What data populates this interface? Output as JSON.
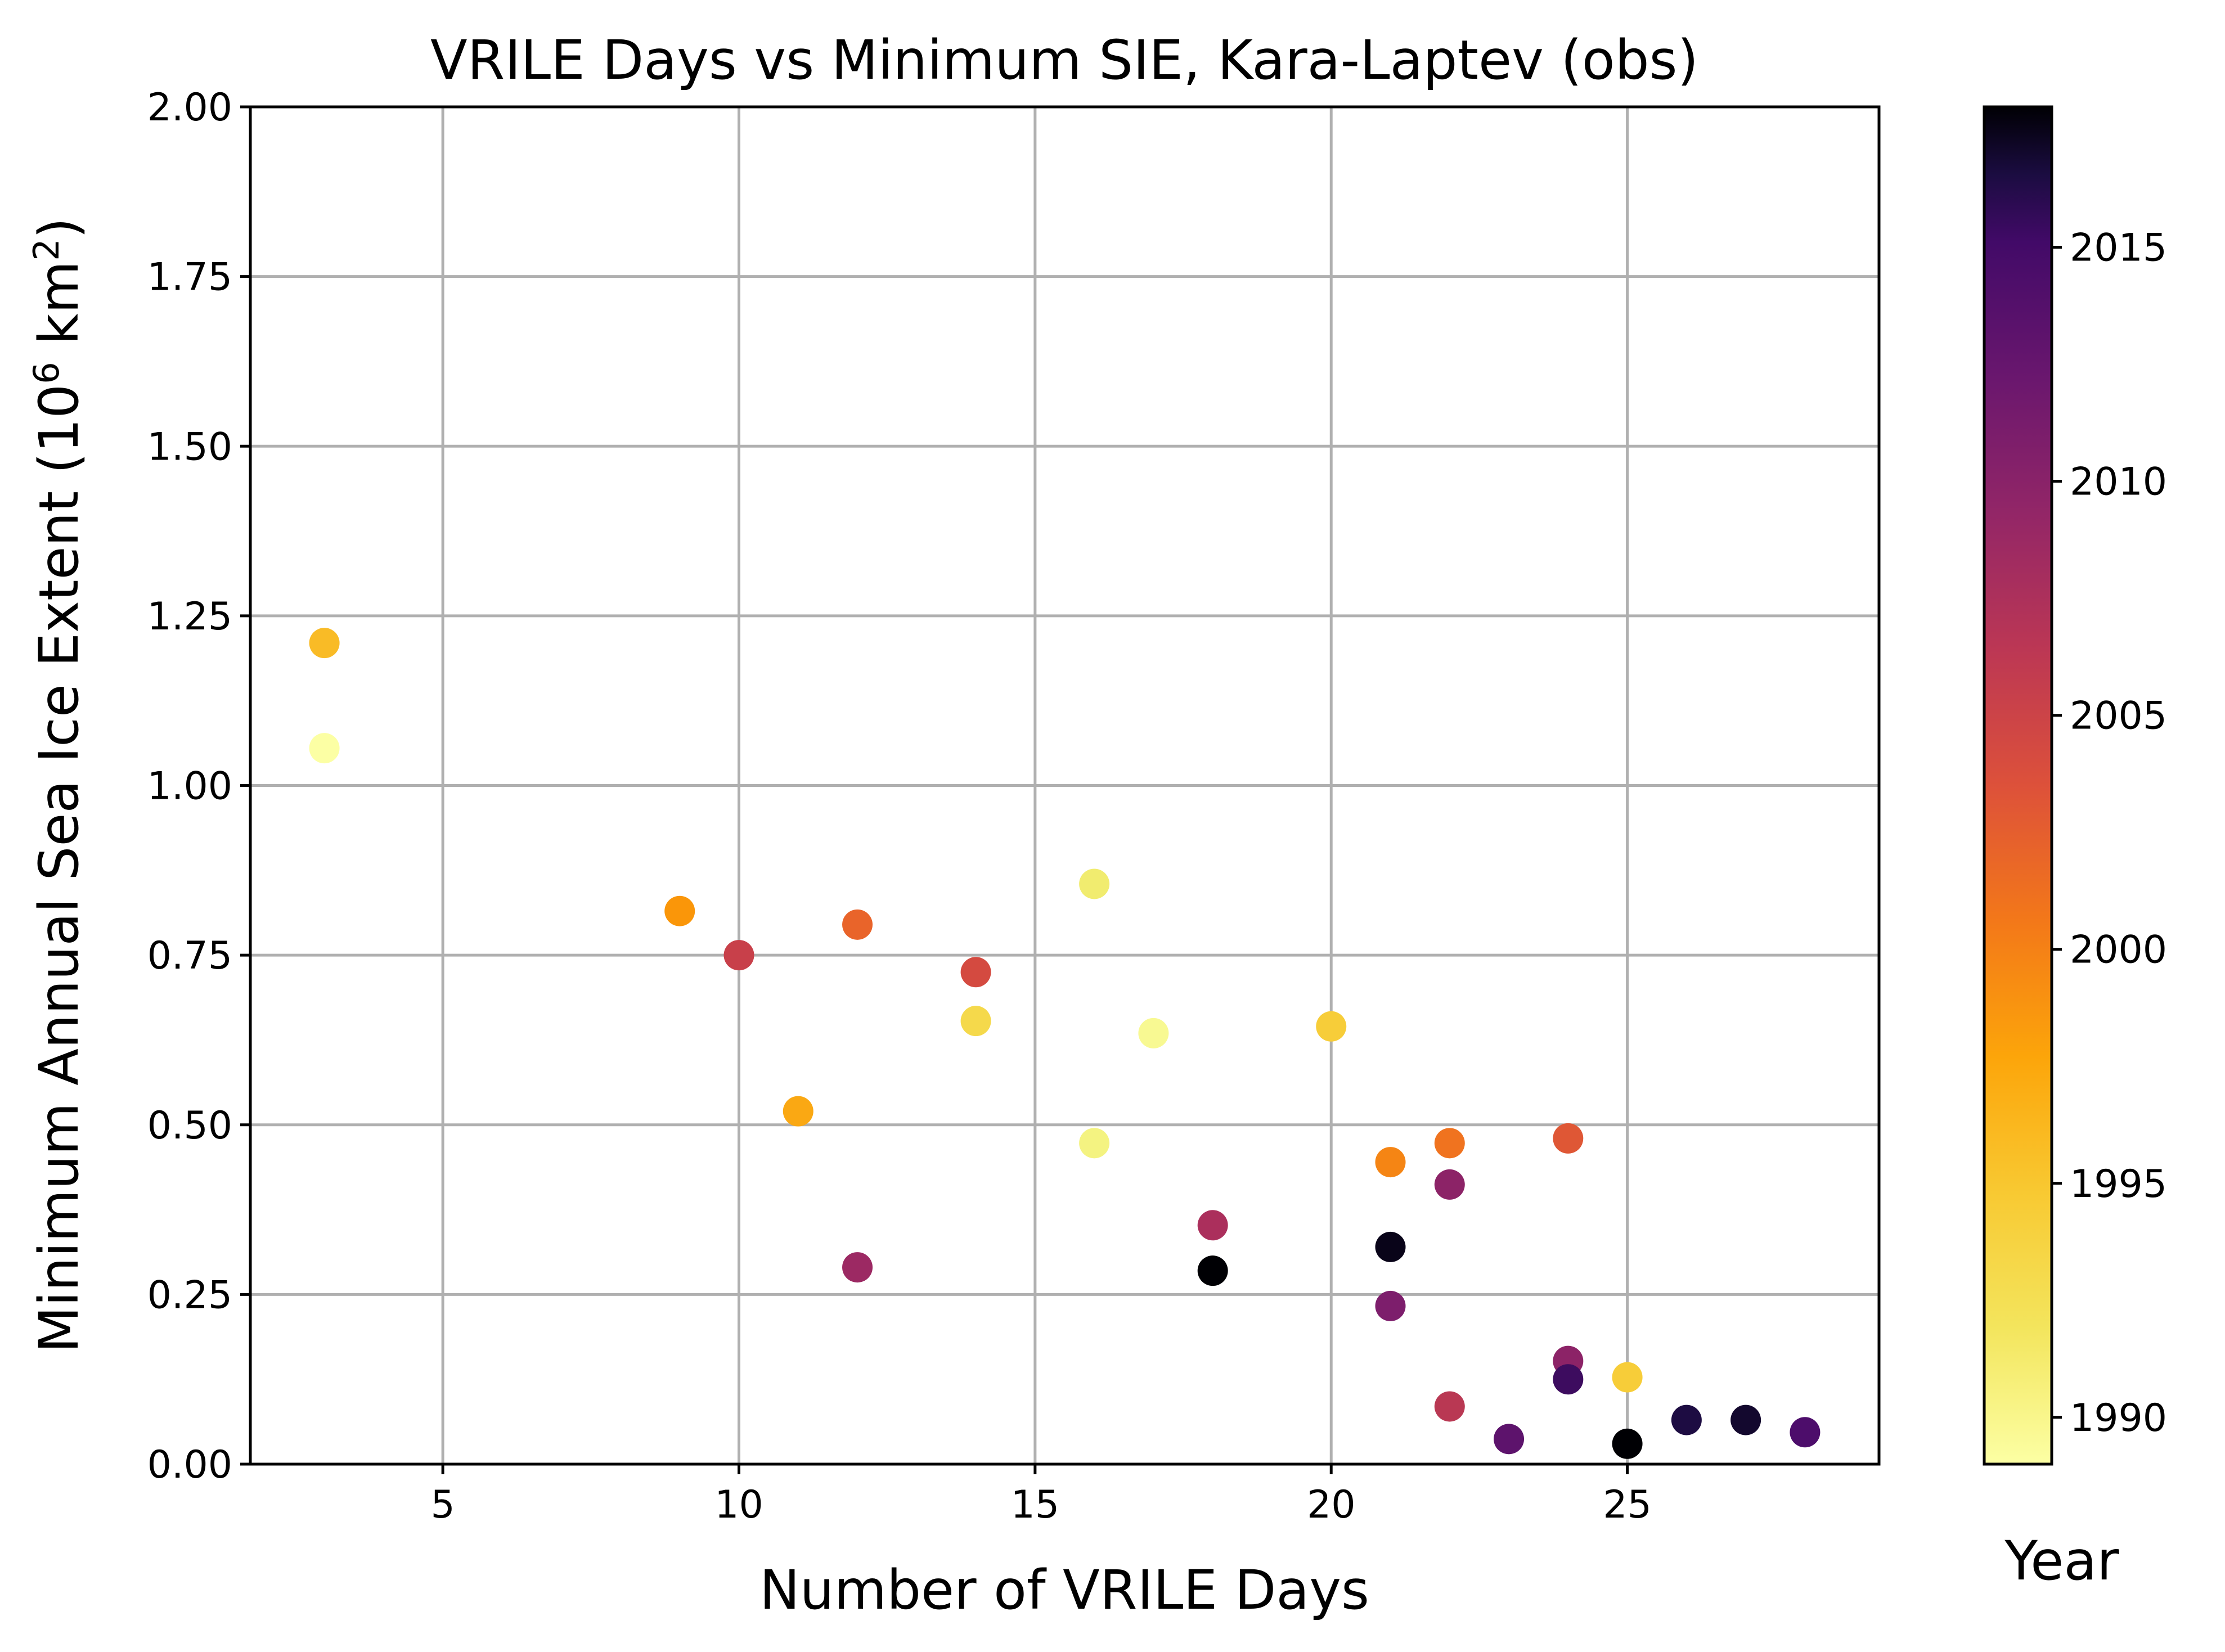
{
  "chart_data": {
    "type": "scatter",
    "title": "VRILE Days vs Minimum SIE, Kara-Laptev (obs)",
    "xlabel": "Number of VRILE Days",
    "ylabel_main": "Minimum Annual Sea Ice Extent (10",
    "ylabel_sup1": "6",
    "ylabel_mid": " km",
    "ylabel_sup2": "2",
    "ylabel_end": ")",
    "xlim": [
      1.75,
      29.25
    ],
    "ylim": [
      0,
      2.0
    ],
    "xticks": [
      5,
      10,
      15,
      20,
      25
    ],
    "xtick_labels": [
      "5",
      "10",
      "15",
      "20",
      "25"
    ],
    "yticks": [
      0,
      0.25,
      0.5,
      0.75,
      1.0,
      1.25,
      1.5,
      1.75,
      2.0
    ],
    "ytick_labels": [
      "0.00",
      "0.25",
      "0.50",
      "0.75",
      "1.00",
      "1.25",
      "1.50",
      "1.75",
      "2.00"
    ],
    "grid": true,
    "colormap": "inferno_r",
    "colorbar": {
      "label": "Year",
      "range": [
        1989,
        2018
      ],
      "ticks": [
        1990,
        1995,
        2000,
        2005,
        2010,
        2015
      ],
      "tick_labels": [
        "1990",
        "1995",
        "2000",
        "2005",
        "2010",
        "2015"
      ]
    },
    "points": [
      {
        "x": 3,
        "y": 1.21,
        "year": 1996
      },
      {
        "x": 3,
        "y": 1.055,
        "year": 1989
      },
      {
        "x": 9,
        "y": 0.815,
        "year": 1998
      },
      {
        "x": 10,
        "y": 0.75,
        "year": 2004
      },
      {
        "x": 11,
        "y": 0.52,
        "year": 1997
      },
      {
        "x": 12,
        "y": 0.795,
        "year": 2001
      },
      {
        "x": 12,
        "y": 0.29,
        "year": 2007
      },
      {
        "x": 14,
        "y": 0.725,
        "year": 2003
      },
      {
        "x": 14,
        "y": 0.653,
        "year": 1994
      },
      {
        "x": 16,
        "y": 0.855,
        "year": 1992
      },
      {
        "x": 16,
        "y": 0.473,
        "year": 1991
      },
      {
        "x": 17,
        "y": 0.635,
        "year": 1990
      },
      {
        "x": 18,
        "y": 0.352,
        "year": 2006
      },
      {
        "x": 18,
        "y": 0.285,
        "year": 2018
      },
      {
        "x": 20,
        "y": 0.645,
        "year": 1995
      },
      {
        "x": 21,
        "y": 0.445,
        "year": 1999
      },
      {
        "x": 21,
        "y": 0.32,
        "year": 2017
      },
      {
        "x": 21,
        "y": 0.233,
        "year": 2009
      },
      {
        "x": 22,
        "y": 0.473,
        "year": 2000
      },
      {
        "x": 22,
        "y": 0.412,
        "year": 2008
      },
      {
        "x": 22,
        "y": 0.085,
        "year": 2005
      },
      {
        "x": 23,
        "y": 0.037,
        "year": 2011
      },
      {
        "x": 24,
        "y": 0.48,
        "year": 2002
      },
      {
        "x": 24,
        "y": 0.152,
        "year": 2008
      },
      {
        "x": 24,
        "y": 0.125,
        "year": 2013
      },
      {
        "x": 25,
        "y": 0.128,
        "year": 1995
      },
      {
        "x": 25,
        "y": 0.03,
        "year": 2018
      },
      {
        "x": 26,
        "y": 0.065,
        "year": 2015
      },
      {
        "x": 27,
        "y": 0.065,
        "year": 2016
      },
      {
        "x": 28,
        "y": 0.047,
        "year": 2012
      }
    ]
  }
}
